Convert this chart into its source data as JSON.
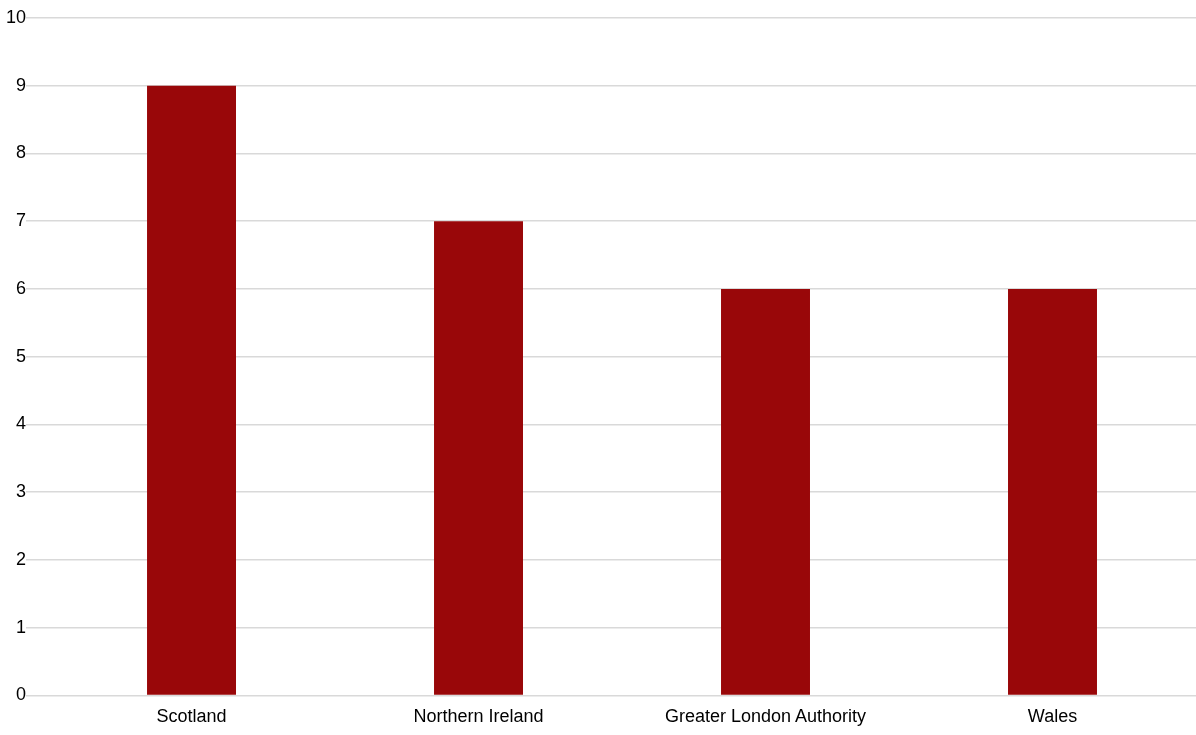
{
  "chart_data": {
    "type": "bar",
    "categories": [
      "Scotland",
      "Northern Ireland",
      "Greater London Authority",
      "Wales"
    ],
    "values": [
      9,
      7,
      6,
      6
    ],
    "color": "#990709",
    "ylim": [
      0,
      10
    ],
    "yticks": [
      0,
      1,
      2,
      3,
      4,
      5,
      6,
      7,
      8,
      9,
      10
    ],
    "grid": "y",
    "legend": false
  }
}
